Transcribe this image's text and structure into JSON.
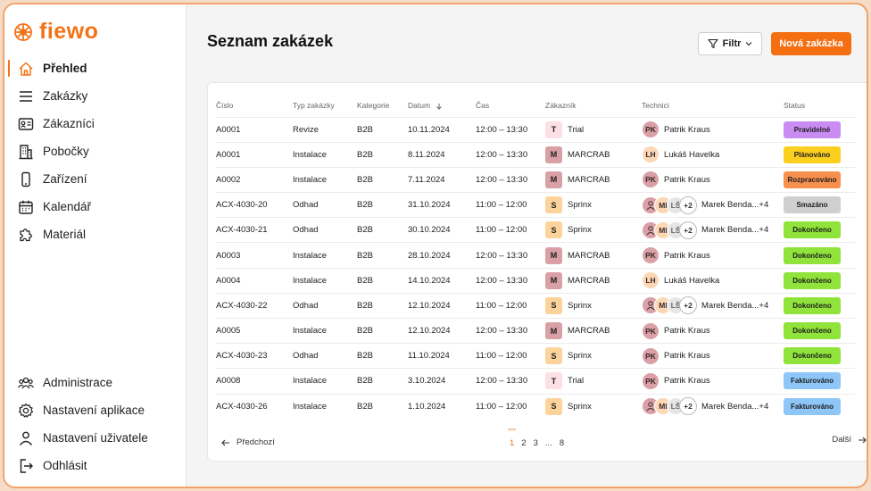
{
  "brand": {
    "name": "fiewo",
    "accent": "#f47216"
  },
  "sidebar": {
    "top": [
      {
        "label": "Přehled",
        "icon": "home-icon",
        "active": true
      },
      {
        "label": "Zakázky",
        "icon": "list-icon"
      },
      {
        "label": "Zákazníci",
        "icon": "contact-card-icon"
      },
      {
        "label": "Pobočky",
        "icon": "building-icon"
      },
      {
        "label": "Zařízení",
        "icon": "phone-icon"
      },
      {
        "label": "Kalendář",
        "icon": "calendar-icon"
      },
      {
        "label": "Materiál",
        "icon": "puzzle-icon"
      }
    ],
    "bottom": [
      {
        "label": "Administrace",
        "icon": "users-icon"
      },
      {
        "label": "Nastavení aplikace",
        "icon": "gear-icon"
      },
      {
        "label": "Nastavení uživatele",
        "icon": "user-icon"
      },
      {
        "label": "Odhlásit",
        "icon": "logout-icon"
      }
    ]
  },
  "header": {
    "title": "Seznam zakázek",
    "filter_label": "Filtr",
    "new_label": "Nová zakázka"
  },
  "table": {
    "columns": [
      "Číslo",
      "Typ zakázky",
      "Kategorie",
      "Datum",
      "Čas",
      "Zákazník",
      "Technici",
      "Status"
    ],
    "rows": [
      {
        "cislo": "A0001",
        "typ": "Revize",
        "kat": "B2B",
        "datum": "10.11.2024",
        "cas": "12:00 – 13:30",
        "zak_initial": "T",
        "zak": "Trial",
        "tech": "single",
        "tech_initials": "PK",
        "tech_name": "Patrik Kraus",
        "status": "Pravidelné"
      },
      {
        "cislo": "A0001",
        "typ": "Instalace",
        "kat": "B2B",
        "datum": "8.11.2024",
        "cas": "12:00 – 13:30",
        "zak_initial": "M",
        "zak": "MARCRAB",
        "tech": "single",
        "tech_initials": "LH",
        "tech_name": "Lukáš Havelka",
        "status": "Plánováno"
      },
      {
        "cislo": "A0002",
        "typ": "Instalace",
        "kat": "B2B",
        "datum": "7.11.2024",
        "cas": "12:00 – 13:30",
        "zak_initial": "M",
        "zak": "MARCRAB",
        "tech": "single",
        "tech_initials": "PK",
        "tech_name": "Patrik Kraus",
        "status": "Rozpracováno"
      },
      {
        "cislo": "ACX-4030-20",
        "typ": "Odhad",
        "kat": "B2B",
        "datum": "31.10.2024",
        "cas": "11:00 – 12:00",
        "zak_initial": "S",
        "zak": "Sprinx",
        "tech": "group",
        "tech_initials": "MI",
        "tech_initials2": "LŠ",
        "tech_more": "+2",
        "tech_name": "Marek Benda...+4",
        "status": "Smazáno"
      },
      {
        "cislo": "ACX-4030-21",
        "typ": "Odhad",
        "kat": "B2B",
        "datum": "30.10.2024",
        "cas": "11:00 – 12:00",
        "zak_initial": "S",
        "zak": "Sprinx",
        "tech": "group",
        "tech_initials": "MI",
        "tech_initials2": "LŠ",
        "tech_more": "+2",
        "tech_name": "Marek Benda...+4",
        "status": "Dokončeno"
      },
      {
        "cislo": "A0003",
        "typ": "Instalace",
        "kat": "B2B",
        "datum": "28.10.2024",
        "cas": "12:00 – 13:30",
        "zak_initial": "M",
        "zak": "MARCRAB",
        "tech": "single",
        "tech_initials": "PK",
        "tech_name": "Patrik Kraus",
        "status": "Dokončeno"
      },
      {
        "cislo": "A0004",
        "typ": "Instalace",
        "kat": "B2B",
        "datum": "14.10.2024",
        "cas": "12:00 – 13:30",
        "zak_initial": "M",
        "zak": "MARCRAB",
        "tech": "single",
        "tech_initials": "LH",
        "tech_name": "Lukáš Havelka",
        "status": "Dokončeno"
      },
      {
        "cislo": "ACX-4030-22",
        "typ": "Odhad",
        "kat": "B2B",
        "datum": "12.10.2024",
        "cas": "11:00 – 12:00",
        "zak_initial": "S",
        "zak": "Sprinx",
        "tech": "group",
        "tech_initials": "MI",
        "tech_initials2": "LŠ",
        "tech_more": "+2",
        "tech_name": "Marek Benda...+4",
        "status": "Dokončeno"
      },
      {
        "cislo": "A0005",
        "typ": "Instalace",
        "kat": "B2B",
        "datum": "12.10.2024",
        "cas": "12:00 – 13:30",
        "zak_initial": "M",
        "zak": "MARCRAB",
        "tech": "single",
        "tech_initials": "PK",
        "tech_name": "Patrik Kraus",
        "status": "Dokončeno"
      },
      {
        "cislo": "ACX-4030-23",
        "typ": "Odhad",
        "kat": "B2B",
        "datum": "11.10.2024",
        "cas": "11:00 – 12:00",
        "zak_initial": "S",
        "zak": "Sprinx",
        "tech": "single",
        "tech_initials": "PK",
        "tech_name": "Patrik Kraus",
        "status": "Dokončeno"
      },
      {
        "cislo": "A0008",
        "typ": "Instalace",
        "kat": "B2B",
        "datum": "3.10.2024",
        "cas": "12:00 – 13:30",
        "zak_initial": "T",
        "zak": "Trial",
        "tech": "single",
        "tech_initials": "PK",
        "tech_name": "Patrik Kraus",
        "status": "Fakturováno"
      },
      {
        "cislo": "ACX-4030-26",
        "typ": "Instalace",
        "kat": "B2B",
        "datum": "1.10.2024",
        "cas": "11:00 – 12:00",
        "zak_initial": "S",
        "zak": "Sprinx",
        "tech": "group",
        "tech_initials": "MI",
        "tech_initials2": "LŠ",
        "tech_more": "+2",
        "tech_name": "Marek Benda...+4",
        "status": "Fakturováno"
      }
    ]
  },
  "status_colors": {
    "Pravidelné": "#c98cf3",
    "Plánováno": "#fbcf1e",
    "Rozpracováno": "#f7904e",
    "Smazáno": "#cfcfcf",
    "Dokončeno": "#8fe33a",
    "Fakturováno": "#8ec7f7"
  },
  "customer_colors": {
    "T": "#fde0e6",
    "M": "#d9a0a6",
    "S": "#fbd39b"
  },
  "avatar_colors": {
    "PK": "#d9a0a6",
    "LH": "#fbd7b6",
    "MI": "#fbd7b6",
    "LŠ": "#e6e6e6",
    "group-first": "#d9a0a6"
  },
  "pager": {
    "prev": "Předchozí",
    "next": "Další",
    "pages": [
      "1",
      "2",
      "3",
      "...",
      "8"
    ],
    "current": "1"
  }
}
